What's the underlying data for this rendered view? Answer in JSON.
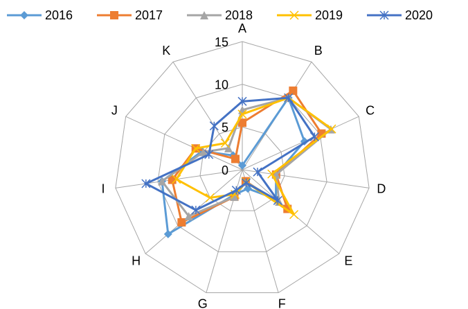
{
  "chart_data": {
    "type": "radar",
    "categories": [
      "A",
      "B",
      "C",
      "D",
      "E",
      "F",
      "G",
      "H",
      "I",
      "J",
      "K"
    ],
    "series": [
      {
        "name": "2016",
        "color": "#5b9bd5",
        "marker": "diamond",
        "values": [
          0.5,
          10,
          8,
          4,
          5.2,
          2.3,
          3,
          11.5,
          9.5,
          5.2,
          2
        ]
      },
      {
        "name": "2017",
        "color": "#ed7d31",
        "marker": "square",
        "values": [
          5.5,
          11,
          10.2,
          4,
          7,
          1.4,
          3.3,
          9.4,
          8.3,
          6,
          1.5
        ]
      },
      {
        "name": "2018",
        "color": "#a5a5a5",
        "marker": "triangle",
        "values": [
          7,
          10,
          11.4,
          4,
          5.7,
          1.5,
          3.3,
          8.3,
          9.5,
          5,
          3
        ]
      },
      {
        "name": "2019",
        "color": "#ffc000",
        "marker": "x",
        "values": [
          6.5,
          10,
          11.5,
          3.5,
          8,
          1.5,
          3,
          5,
          7.8,
          6,
          3.7
        ]
      },
      {
        "name": "2020",
        "color": "#4472c4",
        "marker": "star",
        "values": [
          8,
          10,
          9.3,
          1.8,
          5.5,
          1.6,
          2.5,
          7.2,
          11.4,
          4.3,
          6.1
        ]
      }
    ],
    "ylim": [
      0,
      15
    ],
    "yticks": [
      0,
      5,
      10,
      15
    ],
    "grid": true,
    "legend": "top"
  }
}
